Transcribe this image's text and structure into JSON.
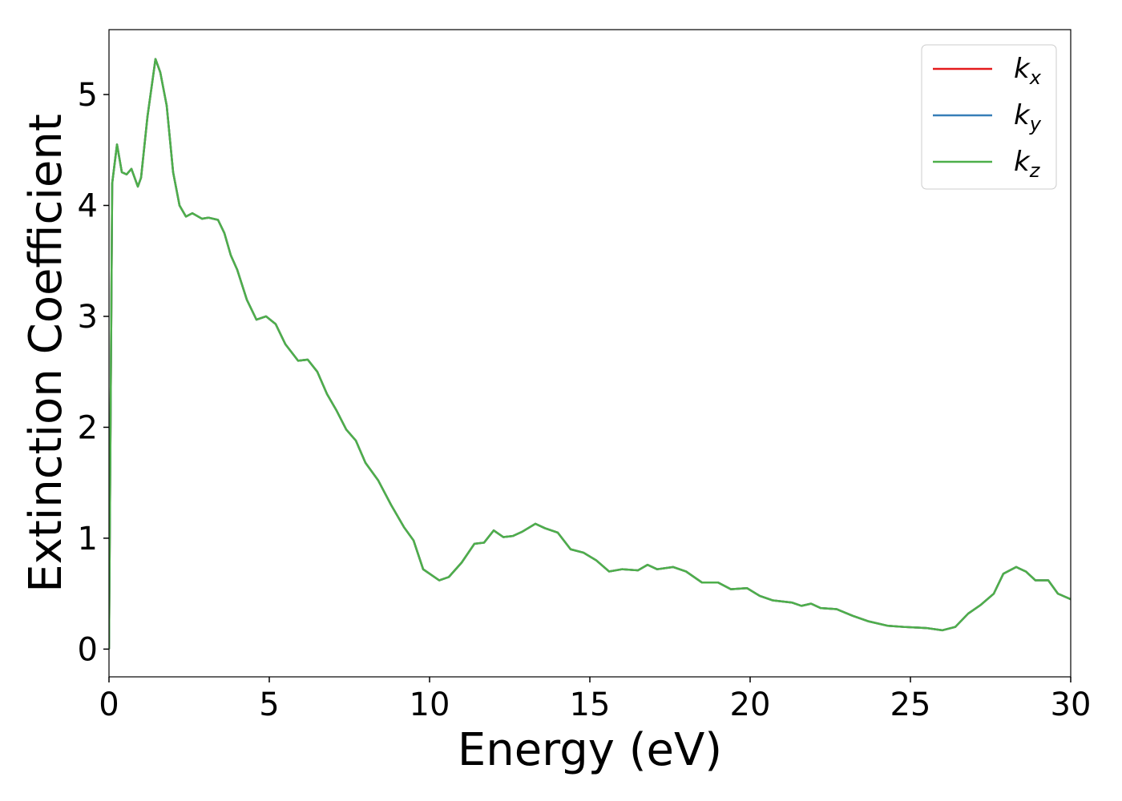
{
  "chart_data": {
    "type": "line",
    "xlabel": "Energy (eV)",
    "ylabel": "Extinction Coefficient",
    "x": [
      0,
      0.1,
      0.25,
      0.4,
      0.55,
      0.7,
      0.9,
      1.0,
      1.2,
      1.45,
      1.6,
      1.8,
      2.0,
      2.2,
      2.4,
      2.6,
      2.9,
      3.1,
      3.4,
      3.6,
      3.8,
      4.0,
      4.3,
      4.6,
      4.9,
      5.2,
      5.5,
      5.9,
      6.2,
      6.5,
      6.8,
      7.1,
      7.4,
      7.7,
      8.0,
      8.4,
      8.8,
      9.2,
      9.5,
      9.8,
      10.3,
      10.6,
      11.0,
      11.4,
      11.7,
      12.0,
      12.3,
      12.6,
      12.9,
      13.3,
      13.6,
      14.0,
      14.4,
      14.8,
      15.2,
      15.6,
      16.0,
      16.5,
      16.8,
      17.1,
      17.6,
      18.0,
      18.5,
      19.0,
      19.4,
      19.9,
      20.3,
      20.7,
      21.3,
      21.6,
      21.9,
      22.2,
      22.7,
      23.2,
      23.7,
      24.3,
      24.8,
      25.5,
      26.0,
      26.4,
      26.8,
      27.2,
      27.6,
      27.9,
      28.3,
      28.6,
      28.9,
      29.3,
      29.6,
      30
    ],
    "series": [
      {
        "name": "kx",
        "color": "#e41a1c",
        "values": [
          0,
          4.2,
          4.55,
          4.3,
          4.28,
          4.33,
          4.17,
          4.25,
          4.8,
          5.32,
          5.2,
          4.9,
          4.3,
          4.0,
          3.9,
          3.93,
          3.88,
          3.89,
          3.87,
          3.75,
          3.55,
          3.42,
          3.15,
          2.97,
          3.0,
          2.93,
          2.75,
          2.6,
          2.61,
          2.5,
          2.3,
          2.15,
          1.98,
          1.88,
          1.68,
          1.52,
          1.3,
          1.1,
          0.98,
          0.72,
          0.62,
          0.65,
          0.78,
          0.95,
          0.96,
          1.07,
          1.01,
          1.02,
          1.06,
          1.13,
          1.09,
          1.05,
          0.9,
          0.87,
          0.8,
          0.7,
          0.72,
          0.71,
          0.76,
          0.72,
          0.74,
          0.7,
          0.6,
          0.6,
          0.54,
          0.55,
          0.48,
          0.44,
          0.42,
          0.39,
          0.41,
          0.37,
          0.36,
          0.3,
          0.25,
          0.21,
          0.2,
          0.19,
          0.17,
          0.2,
          0.32,
          0.4,
          0.5,
          0.68,
          0.74,
          0.7,
          0.62,
          0.62,
          0.5,
          0.45
        ]
      },
      {
        "name": "ky",
        "color": "#377eb8",
        "values": [
          0,
          4.2,
          4.55,
          4.3,
          4.28,
          4.33,
          4.17,
          4.25,
          4.8,
          5.32,
          5.2,
          4.9,
          4.3,
          4.0,
          3.9,
          3.93,
          3.88,
          3.89,
          3.87,
          3.75,
          3.55,
          3.42,
          3.15,
          2.97,
          3.0,
          2.93,
          2.75,
          2.6,
          2.61,
          2.5,
          2.3,
          2.15,
          1.98,
          1.88,
          1.68,
          1.52,
          1.3,
          1.1,
          0.98,
          0.72,
          0.62,
          0.65,
          0.78,
          0.95,
          0.96,
          1.07,
          1.01,
          1.02,
          1.06,
          1.13,
          1.09,
          1.05,
          0.9,
          0.87,
          0.8,
          0.7,
          0.72,
          0.71,
          0.76,
          0.72,
          0.74,
          0.7,
          0.6,
          0.6,
          0.54,
          0.55,
          0.48,
          0.44,
          0.42,
          0.39,
          0.41,
          0.37,
          0.36,
          0.3,
          0.25,
          0.21,
          0.2,
          0.19,
          0.17,
          0.2,
          0.32,
          0.4,
          0.5,
          0.68,
          0.74,
          0.7,
          0.62,
          0.62,
          0.5,
          0.45
        ]
      },
      {
        "name": "kz",
        "color": "#4daf4a",
        "values": [
          0,
          4.2,
          4.55,
          4.3,
          4.28,
          4.33,
          4.17,
          4.25,
          4.8,
          5.32,
          5.2,
          4.9,
          4.3,
          4.0,
          3.9,
          3.93,
          3.88,
          3.89,
          3.87,
          3.75,
          3.55,
          3.42,
          3.15,
          2.97,
          3.0,
          2.93,
          2.75,
          2.6,
          2.61,
          2.5,
          2.3,
          2.15,
          1.98,
          1.88,
          1.68,
          1.52,
          1.3,
          1.1,
          0.98,
          0.72,
          0.62,
          0.65,
          0.78,
          0.95,
          0.96,
          1.07,
          1.01,
          1.02,
          1.06,
          1.13,
          1.09,
          1.05,
          0.9,
          0.87,
          0.8,
          0.7,
          0.72,
          0.71,
          0.76,
          0.72,
          0.74,
          0.7,
          0.6,
          0.6,
          0.54,
          0.55,
          0.48,
          0.44,
          0.42,
          0.39,
          0.41,
          0.37,
          0.36,
          0.3,
          0.25,
          0.21,
          0.2,
          0.19,
          0.17,
          0.2,
          0.32,
          0.4,
          0.5,
          0.68,
          0.74,
          0.7,
          0.62,
          0.62,
          0.5,
          0.45
        ]
      }
    ],
    "xlim": [
      0,
      30
    ],
    "xticks": [
      0,
      5,
      10,
      15,
      20,
      25,
      30
    ],
    "ylim": [
      -0.25,
      5.585
    ],
    "yticks": [
      0,
      1,
      2,
      3,
      4,
      5
    ],
    "grid": false,
    "legend": "upper right"
  }
}
